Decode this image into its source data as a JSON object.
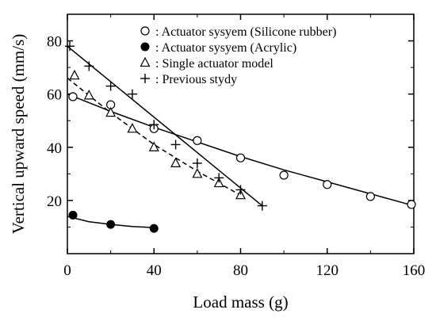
{
  "chart_data": {
    "type": "scatter",
    "xlabel": "Load mass (g)",
    "ylabel": "Vertical upward speed (mm/s)",
    "xlim": [
      0,
      160
    ],
    "ylim": [
      0,
      90
    ],
    "xticks": [
      0,
      40,
      80,
      120,
      160
    ],
    "yticks": [
      20,
      40,
      60,
      80
    ],
    "xtick_labels": [
      "0",
      "40",
      "80",
      "120",
      "160"
    ],
    "ytick_labels": [
      "20",
      "40",
      "60",
      "80"
    ],
    "grid": false,
    "legend_position": "top-right",
    "series": [
      {
        "name": "Actuator sysyem (Silicone rubber)",
        "legend_label": ": Actuator sysyem (Silicone rubber)",
        "marker": "open-circle",
        "x": [
          0,
          20,
          40,
          60,
          80,
          100,
          120,
          140,
          160
        ],
        "y": [
          59,
          56,
          47,
          42.5,
          36,
          29.5,
          26,
          21.5,
          18.5
        ],
        "fit_x": [
          0,
          20,
          40,
          60,
          80,
          100,
          120,
          140,
          160
        ],
        "fit_y": [
          60,
          53.5,
          47.5,
          42,
          36.5,
          31.5,
          27,
          22.5,
          18
        ],
        "fit_style": "solid"
      },
      {
        "name": "Actuator sysyem (Acrylic)",
        "legend_label": ": Actuator sysyem (Acrylic)",
        "marker": "filled-circle",
        "x": [
          0,
          20,
          40
        ],
        "y": [
          14.5,
          11,
          9.5
        ],
        "fit_x": [
          0,
          10,
          20,
          30,
          40
        ],
        "fit_y": [
          14,
          12,
          11,
          10.2,
          9.8
        ],
        "fit_style": "solid"
      },
      {
        "name": "Single actuator model",
        "legend_label": ": Single actuator model",
        "marker": "open-triangle",
        "x": [
          0,
          10,
          20,
          30,
          40,
          50,
          60,
          70,
          80
        ],
        "y": [
          67,
          59.5,
          53,
          47,
          40,
          34,
          30,
          26.5,
          22
        ],
        "fit_x": [
          0,
          20,
          40,
          60,
          80
        ],
        "fit_y": [
          66,
          53,
          41,
          31,
          22
        ],
        "fit_style": "dashed"
      },
      {
        "name": "Previous stydy",
        "legend_label": ": Previous stydy",
        "marker": "plus",
        "x": [
          0,
          10,
          20,
          30,
          40,
          50,
          60,
          70,
          80,
          90
        ],
        "y": [
          78,
          70.5,
          63,
          60,
          48.5,
          41,
          34,
          28.5,
          24,
          18
        ],
        "fit_x": [
          0,
          90
        ],
        "fit_y": [
          78,
          18
        ],
        "fit_style": "solid"
      }
    ]
  }
}
